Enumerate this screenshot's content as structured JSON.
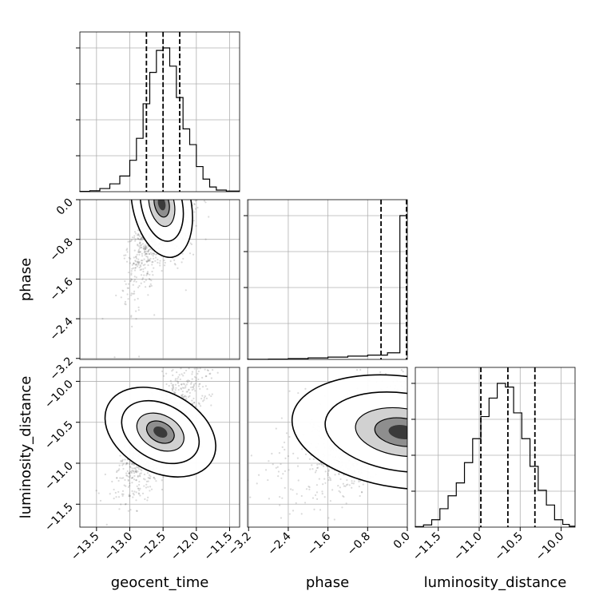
{
  "chart_data": {
    "type": "corner",
    "parameters": [
      "geocent_time",
      "phase",
      "luminosity_distance"
    ],
    "grid": true,
    "ranges": {
      "geocent_time": [
        -13.75,
        -11.35
      ],
      "phase": [
        -3.22,
        0.0
      ],
      "luminosity_distance": [
        -11.78,
        -9.83
      ]
    },
    "ticks": {
      "geocent_time": [
        "-13.5",
        "-13.0",
        "-12.5",
        "-12.0",
        "-11.5"
      ],
      "phase": [
        "-3.2",
        "-2.4",
        "-1.6",
        "-0.8",
        "0.0"
      ],
      "luminosity_distance": [
        "-11.5",
        "-11.0",
        "-10.5",
        "-10.0"
      ]
    },
    "quantiles": {
      "geocent_time": [
        -12.75,
        -12.5,
        -12.25
      ],
      "phase": [
        -0.53,
        0.0
      ],
      "luminosity_distance": [
        -10.98,
        -10.65,
        -10.32
      ]
    },
    "histograms": {
      "geocent_time": {
        "bins": [
          -13.75,
          -13.6,
          -13.45,
          -13.3,
          -13.15,
          -13.0,
          -12.9,
          -12.8,
          -12.7,
          -12.6,
          -12.5,
          -12.4,
          -12.3,
          -12.2,
          -12.1,
          -12.0,
          -11.9,
          -11.8,
          -11.7,
          -11.55,
          -11.35
        ],
        "counts": [
          1,
          3,
          10,
          25,
          50,
          100,
          170,
          280,
          380,
          450,
          458,
          400,
          300,
          200,
          150,
          80,
          40,
          15,
          5,
          2
        ]
      },
      "phase": {
        "bins": [
          -3.22,
          -2.8,
          -2.4,
          -2.0,
          -1.6,
          -1.2,
          -0.8,
          -0.4,
          -0.15,
          0.0
        ],
        "counts": [
          1,
          2,
          5,
          9,
          14,
          20,
          26,
          40,
          870
        ]
      },
      "luminosity_distance": {
        "bins": [
          -11.78,
          -11.68,
          -11.58,
          -11.48,
          -11.38,
          -11.28,
          -11.18,
          -11.08,
          -10.98,
          -10.88,
          -10.78,
          -10.68,
          -10.58,
          -10.48,
          -10.38,
          -10.28,
          -10.18,
          -10.08,
          -9.98,
          -9.9,
          -9.83
        ],
        "counts": [
          3,
          12,
          40,
          100,
          170,
          240,
          350,
          480,
          600,
          700,
          780,
          760,
          620,
          480,
          330,
          200,
          120,
          40,
          15,
          5
        ]
      }
    },
    "pairs": [
      {
        "x": "geocent_time",
        "y": "phase",
        "center": [
          -12.52,
          -0.08
        ],
        "spread": [
          0.22,
          0.55
        ],
        "corr": 0.55
      },
      {
        "x": "geocent_time",
        "y": "luminosity_distance",
        "center": [
          -12.54,
          -10.62
        ],
        "spread": [
          0.3,
          0.36
        ],
        "corr": 0.72
      },
      {
        "x": "phase",
        "y": "luminosity_distance",
        "center": [
          -0.1,
          -10.62
        ],
        "spread": [
          0.7,
          0.34
        ],
        "corr": 0.35
      }
    ]
  }
}
